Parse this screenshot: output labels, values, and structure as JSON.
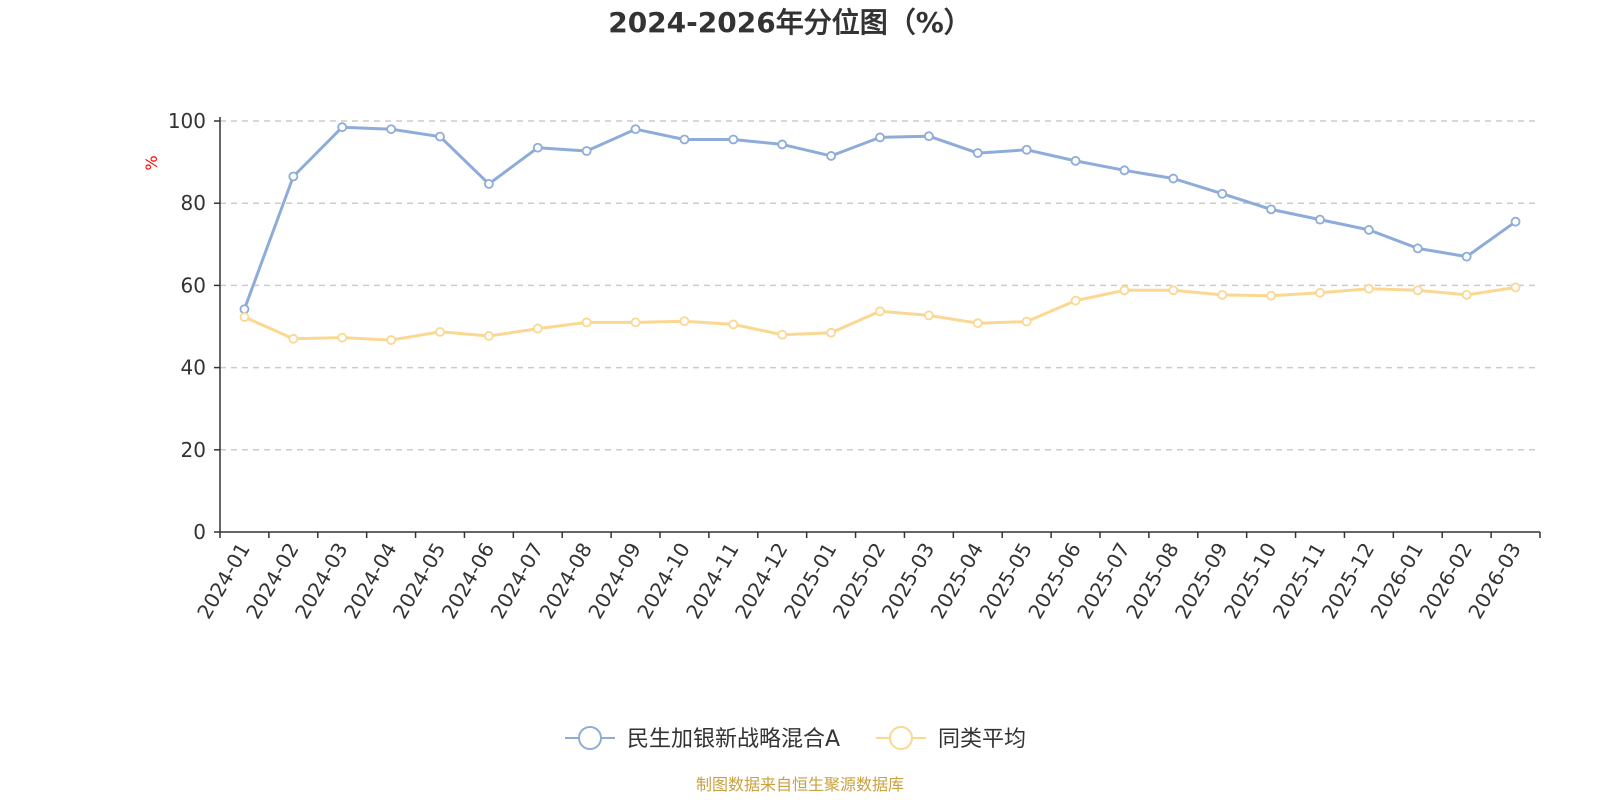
{
  "chart_data": {
    "type": "line",
    "title": "2024-2026年分位图（%）",
    "ylabel": "%",
    "xlabel": "",
    "ylim": [
      0,
      100
    ],
    "yticks": [
      0,
      20,
      40,
      60,
      80,
      100
    ],
    "grid": true,
    "legend_position": "bottom",
    "categories": [
      "2024-01",
      "2024-02",
      "2024-03",
      "2024-04",
      "2024-05",
      "2024-06",
      "2024-07",
      "2024-08",
      "2024-09",
      "2024-10",
      "2024-11",
      "2024-12",
      "2025-01",
      "2025-02",
      "2025-03",
      "2025-04",
      "2025-05",
      "2025-06",
      "2025-07",
      "2025-08",
      "2025-09",
      "2025-10",
      "2025-11",
      "2025-12",
      "2026-01",
      "2026-02",
      "2026-03"
    ],
    "series": [
      {
        "name": "民生加银新战略混合A",
        "color": "#8eacd9",
        "values": [
          54.2,
          86.5,
          98.5,
          98.0,
          96.2,
          84.7,
          93.5,
          92.7,
          98.0,
          95.5,
          95.5,
          94.3,
          91.5,
          96.0,
          96.3,
          92.2,
          93.0,
          90.3,
          88.0,
          86.0,
          82.3,
          78.5,
          76.0,
          73.5,
          69.0,
          67.0,
          75.5
        ]
      },
      {
        "name": "同类平均",
        "color": "#fbd892",
        "values": [
          52.3,
          47.0,
          47.3,
          46.7,
          48.7,
          47.7,
          49.5,
          51.0,
          51.0,
          51.3,
          50.5,
          48.0,
          48.5,
          53.7,
          52.7,
          50.8,
          51.2,
          56.3,
          58.8,
          58.8,
          57.7,
          57.5,
          58.2,
          59.2,
          58.8,
          57.7,
          59.5
        ]
      }
    ]
  },
  "unit_color": "#ff0000",
  "footer": {
    "source": "制图数据来自恒生聚源数据库",
    "color": "#c9a13f"
  }
}
